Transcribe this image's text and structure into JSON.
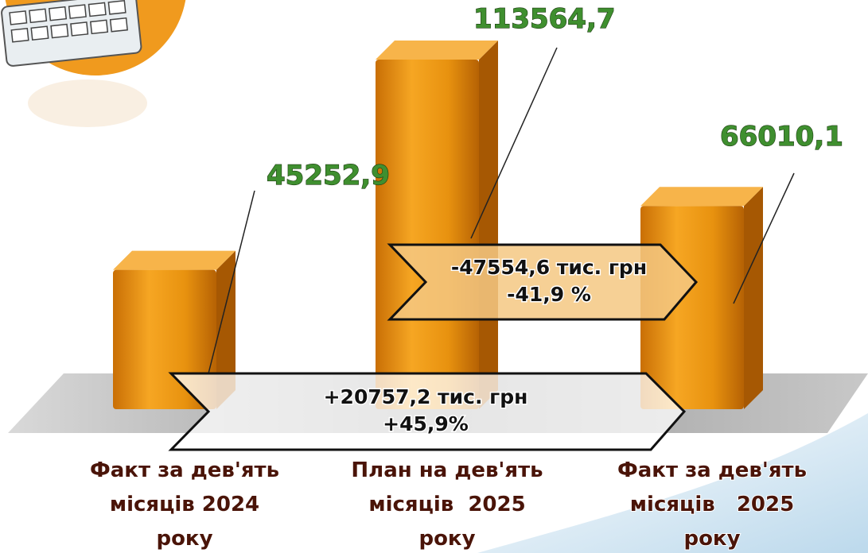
{
  "chart_data": {
    "type": "bar",
    "categories": [
      [
        "Факт за дев'ять",
        "місяців 2024",
        "року"
      ],
      [
        "План на дев'ять",
        "місяців  2025",
        "року"
      ],
      [
        "Факт за дев'ять",
        "місяців   2025",
        "року"
      ]
    ],
    "values": [
      45252.9,
      113564.7,
      66010.1
    ],
    "value_labels": [
      "45252,9",
      "113564,7",
      "66010,1"
    ],
    "color": "#e8920f",
    "annotations": [
      {
        "lines": [
          "-47554,6 тис. грн",
          "-41,9 %"
        ]
      },
      {
        "lines": [
          "+20757,2 тис. грн",
          "+45,9%"
        ]
      }
    ]
  }
}
